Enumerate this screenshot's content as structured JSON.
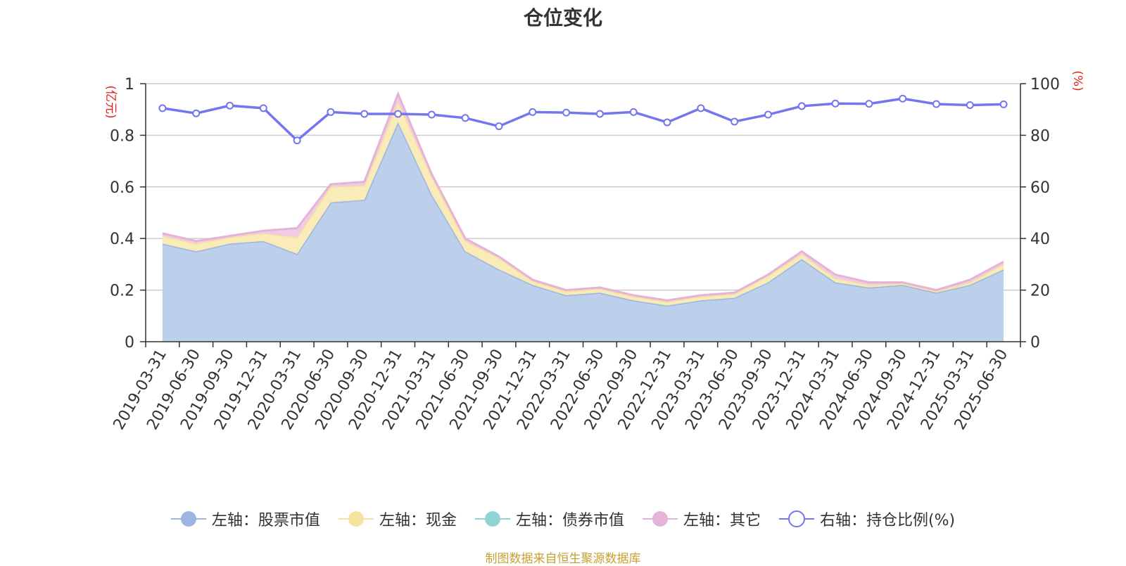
{
  "title": "仓位变化",
  "source_note": "制图数据来自恒生聚源数据库",
  "chart_data": {
    "type": "area",
    "title": "仓位变化",
    "categories": [
      "2019-03-31",
      "2019-06-30",
      "2019-09-30",
      "2019-12-31",
      "2020-03-31",
      "2020-06-30",
      "2020-09-30",
      "2020-12-31",
      "2021-03-31",
      "2021-06-30",
      "2021-09-30",
      "2021-12-31",
      "2022-03-31",
      "2022-06-30",
      "2022-09-30",
      "2022-12-31",
      "2023-03-31",
      "2023-06-30",
      "2023-09-30",
      "2023-12-31",
      "2024-03-31",
      "2024-06-30",
      "2024-09-30",
      "2024-12-31",
      "2025-03-31",
      "2025-06-30"
    ],
    "left_axis": {
      "unit": "(亿元)",
      "ylim": [
        0,
        1
      ],
      "ticks": [
        "0",
        "0.2",
        "0.4",
        "0.6",
        "0.8",
        "1"
      ]
    },
    "right_axis": {
      "unit": "(%)",
      "ylim": [
        0,
        100
      ],
      "ticks": [
        "0",
        "20",
        "40",
        "60",
        "80",
        "100"
      ]
    },
    "grid": true,
    "legend_position": "bottom",
    "series": [
      {
        "name": "左轴：股票市值",
        "axis": "left",
        "stacked": true,
        "color": "#9bb6e0",
        "fill": "#b8cdea",
        "values": [
          0.38,
          0.35,
          0.38,
          0.39,
          0.34,
          0.54,
          0.55,
          0.85,
          0.57,
          0.35,
          0.28,
          0.22,
          0.18,
          0.19,
          0.16,
          0.14,
          0.16,
          0.17,
          0.23,
          0.32,
          0.23,
          0.21,
          0.22,
          0.19,
          0.22,
          0.28
        ]
      },
      {
        "name": "左轴：现金",
        "axis": "left",
        "stacked": true,
        "color": "#f7e3a0",
        "fill": "#f9ebb5",
        "values": [
          0.03,
          0.03,
          0.025,
          0.03,
          0.065,
          0.06,
          0.055,
          0.08,
          0.07,
          0.04,
          0.045,
          0.015,
          0.015,
          0.015,
          0.015,
          0.015,
          0.015,
          0.015,
          0.025,
          0.02,
          0.015,
          0.01,
          0.005,
          0.005,
          0.01,
          0.02
        ]
      },
      {
        "name": "左轴：债券市值",
        "axis": "left",
        "stacked": true,
        "color": "#8fd3d3",
        "fill": "#a6dcdc",
        "values": [
          0,
          0,
          0,
          0,
          0,
          0,
          0,
          0,
          0,
          0,
          0,
          0,
          0,
          0,
          0,
          0,
          0,
          0,
          0,
          0,
          0,
          0,
          0,
          0,
          0,
          0
        ]
      },
      {
        "name": "左轴：其它",
        "axis": "left",
        "stacked": true,
        "color": "#e6b3d8",
        "fill": "#efc9e3",
        "values": [
          0.01,
          0.01,
          0.005,
          0.01,
          0.035,
          0.01,
          0.015,
          0.03,
          0.01,
          0.01,
          0.005,
          0.005,
          0.005,
          0.005,
          0.005,
          0.005,
          0.005,
          0.005,
          0.005,
          0.01,
          0.015,
          0.01,
          0.005,
          0.005,
          0.01,
          0.01
        ]
      },
      {
        "name": "右轴：持仓比例(%)",
        "axis": "right",
        "type": "line",
        "color": "#7476f0",
        "values": [
          90.5,
          88.5,
          91.5,
          90.5,
          78,
          89,
          88.3,
          88.3,
          88,
          86.7,
          83.5,
          89,
          88.8,
          88.3,
          89,
          85,
          90.5,
          85.3,
          88,
          91.3,
          92.3,
          92.2,
          94.2,
          92.1,
          91.7,
          92
        ]
      }
    ]
  }
}
